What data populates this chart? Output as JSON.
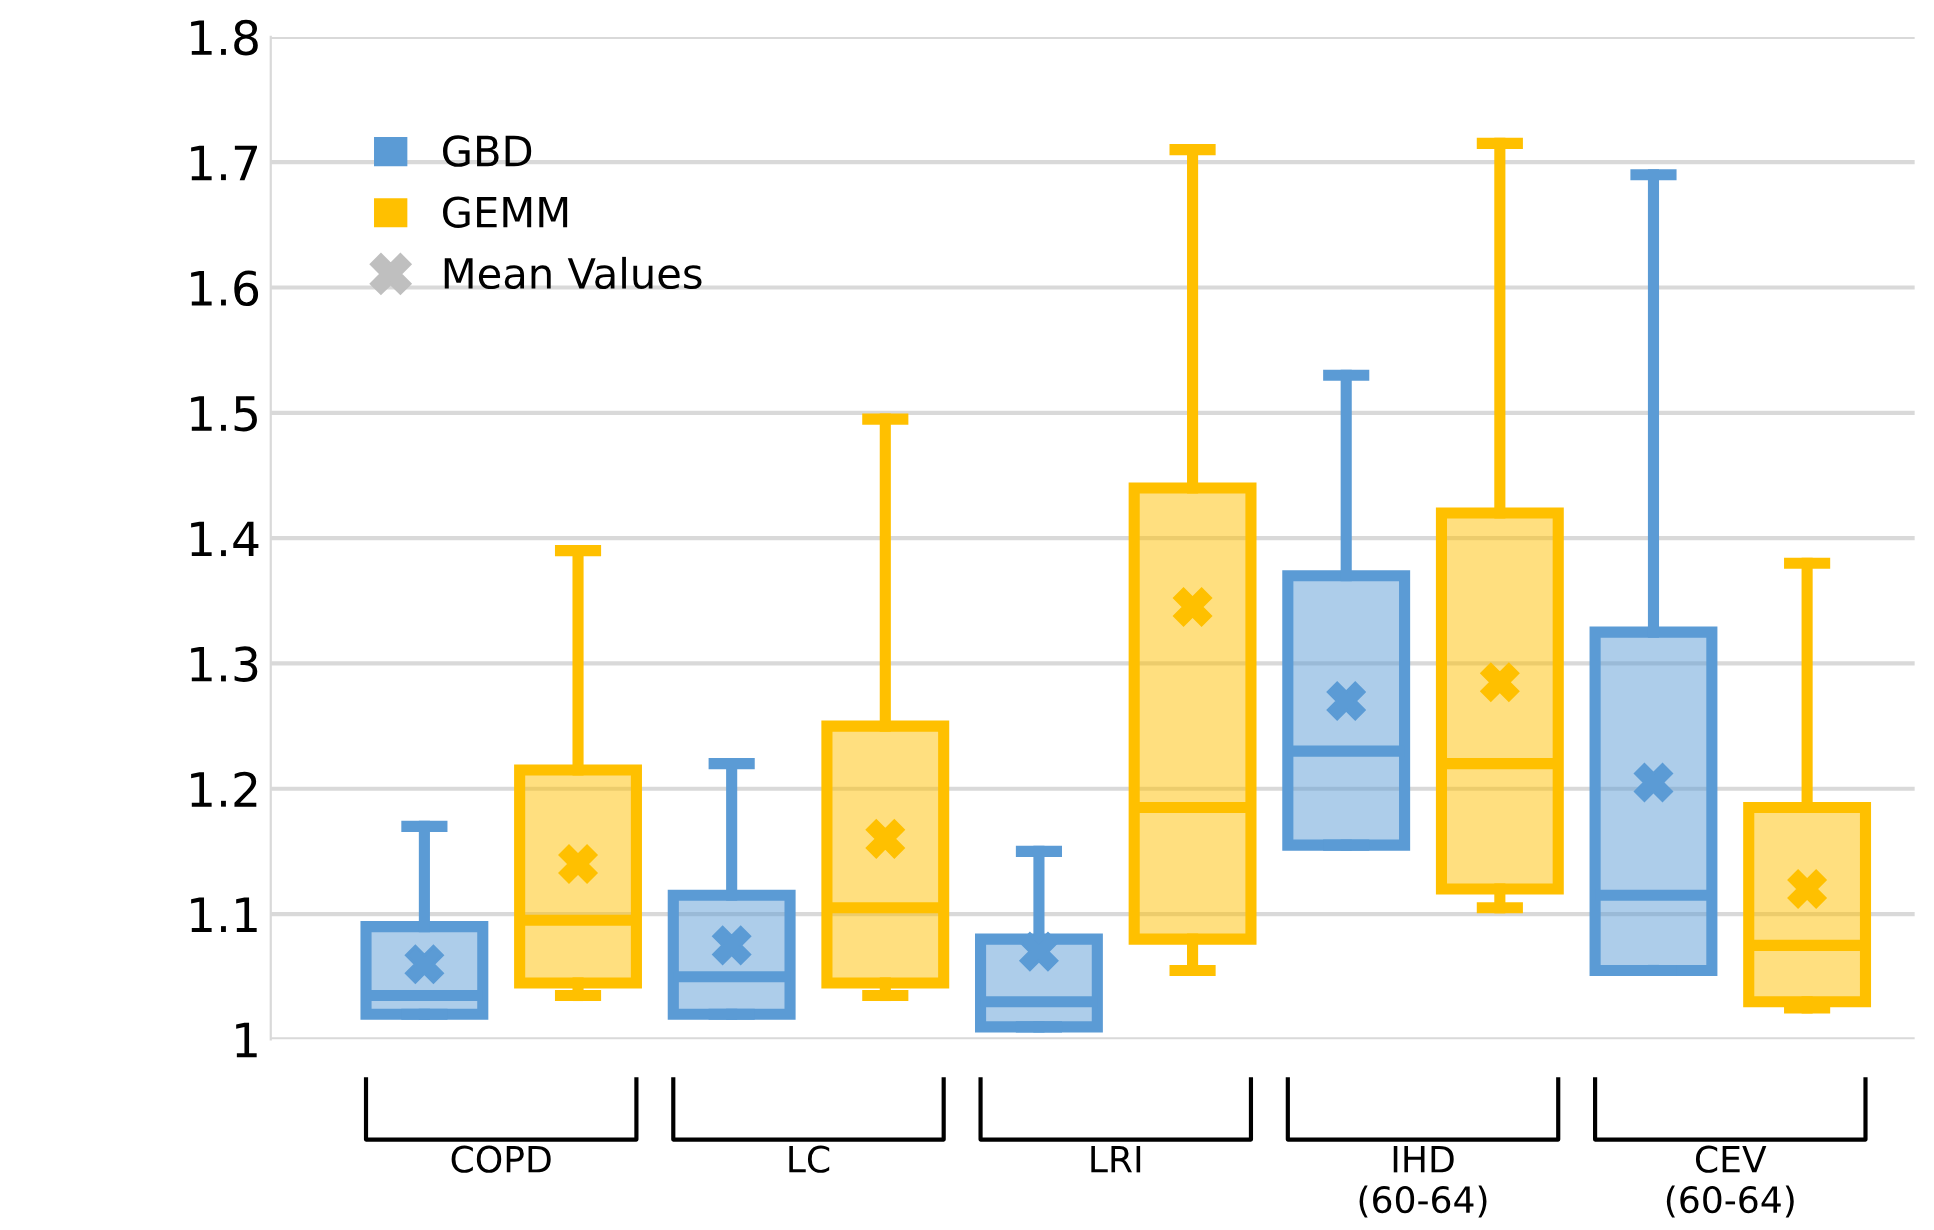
{
  "chart_data": {
    "type": "box",
    "categories": [
      "COPD",
      "LC",
      "LRI",
      "IHD\n(60-64)",
      "CEV\n(60-64)"
    ],
    "series": [
      {
        "name": "GBD",
        "color": "#5b9bd5",
        "boxes": [
          {
            "low": 1.02,
            "q1": 1.02,
            "median": 1.035,
            "q3": 1.09,
            "high": 1.17,
            "mean": 1.06
          },
          {
            "low": 1.02,
            "q1": 1.02,
            "median": 1.05,
            "q3": 1.115,
            "high": 1.22,
            "mean": 1.075
          },
          {
            "low": 1.01,
            "q1": 1.01,
            "median": 1.03,
            "q3": 1.08,
            "high": 1.15,
            "mean": 1.07
          },
          {
            "low": 1.155,
            "q1": 1.155,
            "median": 1.23,
            "q3": 1.37,
            "high": 1.53,
            "mean": 1.27
          },
          {
            "low": 1.055,
            "q1": 1.055,
            "median": 1.115,
            "q3": 1.325,
            "high": 1.69,
            "mean": 1.205
          }
        ]
      },
      {
        "name": "GEMM",
        "color": "#ffc000",
        "boxes": [
          {
            "low": 1.035,
            "q1": 1.045,
            "median": 1.095,
            "q3": 1.215,
            "high": 1.39,
            "mean": 1.14
          },
          {
            "low": 1.035,
            "q1": 1.045,
            "median": 1.105,
            "q3": 1.25,
            "high": 1.495,
            "mean": 1.16
          },
          {
            "low": 1.055,
            "q1": 1.08,
            "median": 1.185,
            "q3": 1.44,
            "high": 1.71,
            "mean": 1.345
          },
          {
            "low": 1.105,
            "q1": 1.12,
            "median": 1.22,
            "q3": 1.42,
            "high": 1.715,
            "mean": 1.285
          },
          {
            "low": 1.025,
            "q1": 1.03,
            "median": 1.075,
            "q3": 1.185,
            "high": 1.38,
            "mean": 1.12
          }
        ]
      },
      {
        "name": "Mean Values",
        "type": "scatter",
        "color": "#bfbfbf",
        "values": [
          null,
          null,
          null,
          null,
          null
        ]
      }
    ],
    "ylim": [
      1,
      1.8
    ],
    "yticks": [
      1,
      1.1,
      1.2,
      1.3,
      1.4,
      1.5,
      1.6,
      1.7,
      1.8
    ],
    "grid": "y",
    "legend": "top left",
    "marker": "cross"
  }
}
